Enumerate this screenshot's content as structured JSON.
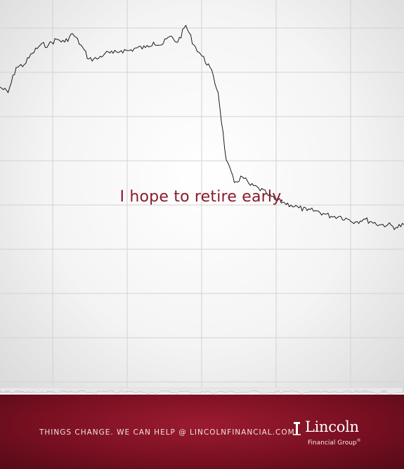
{
  "headline": "I hope to retire early.",
  "tagline": "THINGS CHANGE.  WE CAN HELP @ LINCOLNFINANCIAL.COM",
  "logo": {
    "name": "Lincoln",
    "subtitle": "Financial Group",
    "mark": "®"
  },
  "colors": {
    "headline": "#8a1a2c",
    "footer": "#7a1022",
    "line": "#1a1a1a",
    "grid": "#d2d2d2"
  },
  "chart_data": {
    "type": "line",
    "title": "",
    "xlabel": "",
    "ylabel": "",
    "grid": true,
    "y_unit_note": "relative level, 0 = bottom of grid, 100 = top",
    "x": [
      0,
      2,
      4,
      6,
      8,
      10,
      12,
      14,
      16,
      18,
      20,
      22,
      24,
      26,
      28,
      30,
      32,
      34,
      36,
      38,
      40,
      42,
      44,
      46,
      48,
      50,
      52,
      54,
      56,
      58,
      60,
      62,
      64,
      66,
      68,
      70,
      72,
      74,
      76,
      78,
      80,
      82,
      84,
      86,
      88,
      90,
      92,
      94,
      96,
      98,
      100
    ],
    "values": [
      74,
      72,
      81,
      82,
      86,
      89,
      89,
      91,
      90,
      93,
      89,
      84,
      84,
      86,
      86,
      87,
      87,
      88,
      88,
      90,
      89,
      92,
      90,
      96,
      89,
      85,
      81,
      72,
      48,
      40,
      42,
      39,
      38,
      36,
      34,
      33,
      32,
      31,
      30,
      30,
      29,
      28,
      28,
      27,
      26,
      27,
      26,
      25,
      25,
      24,
      25
    ]
  }
}
